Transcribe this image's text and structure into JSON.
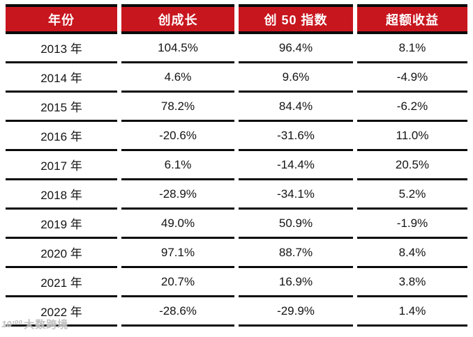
{
  "chart_data": {
    "type": "table",
    "title": "",
    "columns": [
      "年份",
      "创成长",
      "创 50 指数",
      "超额收益"
    ],
    "rows": [
      [
        "2013 年",
        "104.5%",
        "96.4%",
        "8.1%"
      ],
      [
        "2014 年",
        "4.6%",
        "9.6%",
        "-4.9%"
      ],
      [
        "2015 年",
        "78.2%",
        "84.4%",
        "-6.2%"
      ],
      [
        "2016 年",
        "-20.6%",
        "-31.6%",
        "11.0%"
      ],
      [
        "2017 年",
        "6.1%",
        "-14.4%",
        "20.5%"
      ],
      [
        "2018 年",
        "-28.9%",
        "-34.1%",
        "5.2%"
      ],
      [
        "2019 年",
        "49.0%",
        "50.9%",
        "-1.9%"
      ],
      [
        "2020 年",
        "97.1%",
        "88.7%",
        "8.4%"
      ],
      [
        "2021 年",
        "20.7%",
        "16.9%",
        "3.8%"
      ],
      [
        "2022 年",
        "-28.6%",
        "-29.9%",
        "1.4%"
      ]
    ],
    "layout": {
      "header_bg": "#c8161e",
      "header_text_color": "#ffffff",
      "rule_color": "#0a0a0a",
      "body_bg": "#ffffff"
    }
  },
  "watermark": {
    "logo_label": "10¹⁰⁰",
    "text": "大数跨境"
  }
}
